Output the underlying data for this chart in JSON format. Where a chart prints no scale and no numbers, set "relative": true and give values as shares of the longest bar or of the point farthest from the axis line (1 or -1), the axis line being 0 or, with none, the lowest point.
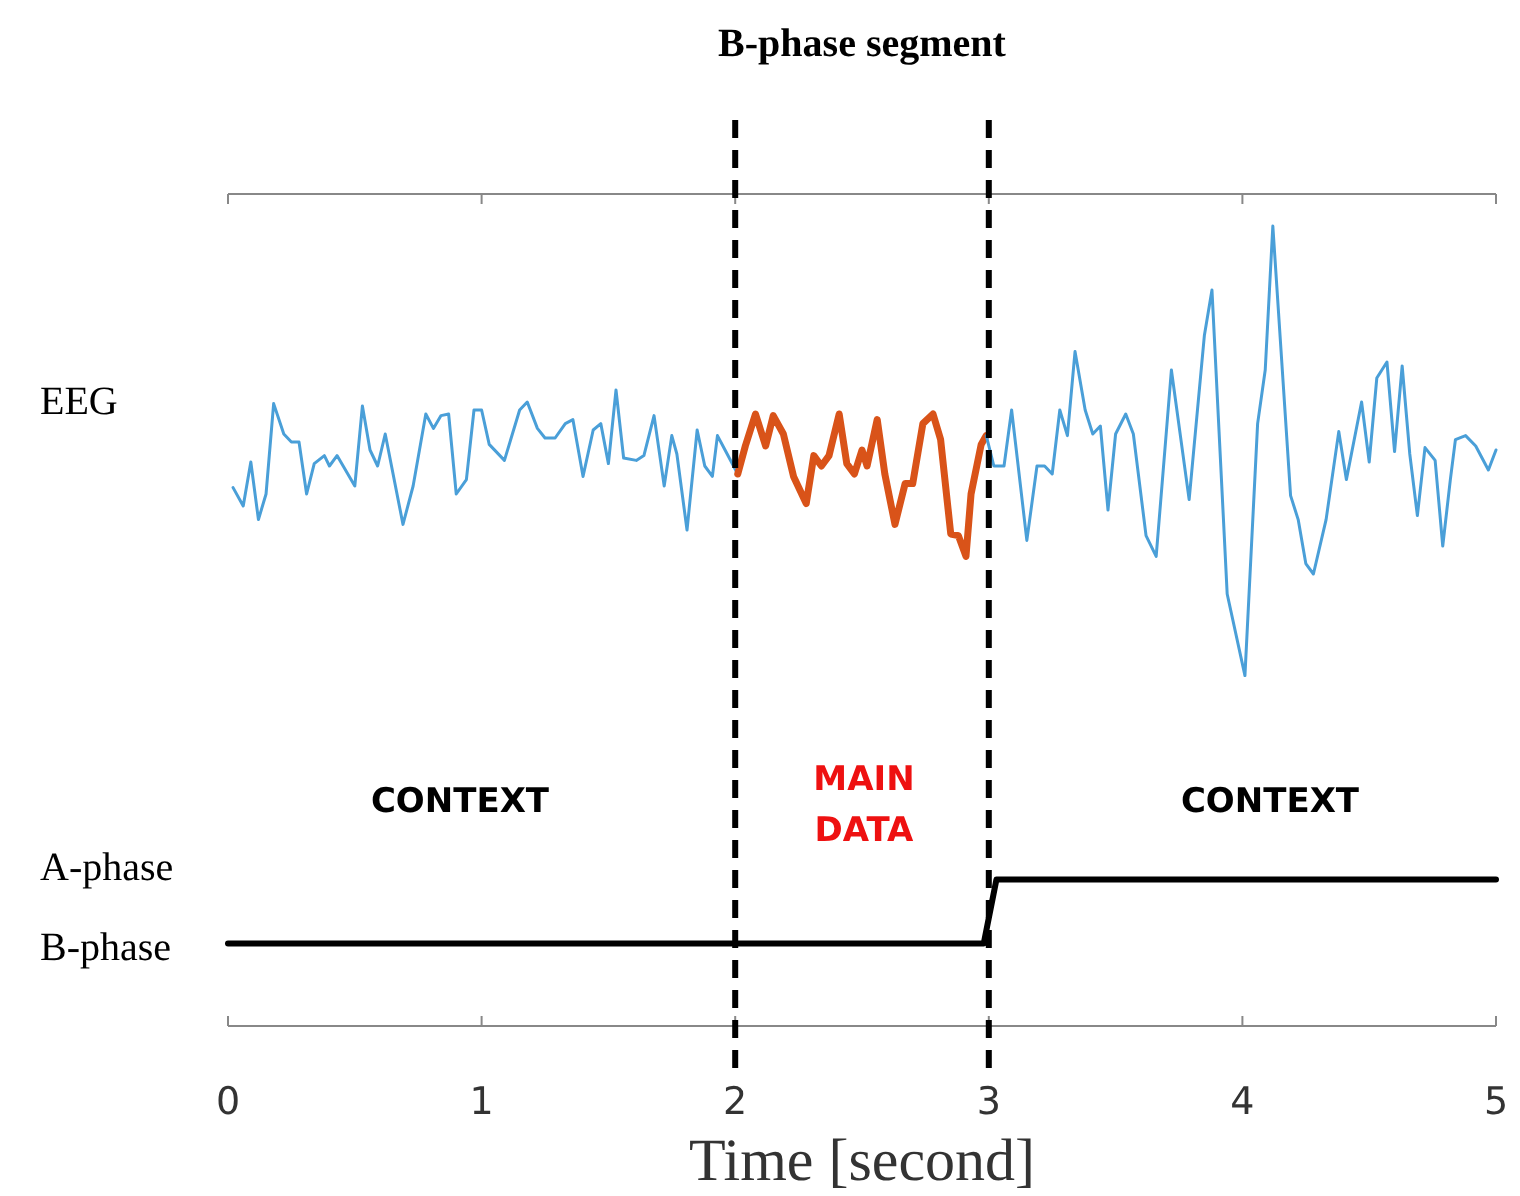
{
  "chart_data": {
    "type": "line",
    "title": "B-phase segment",
    "xlabel": "Time [second]",
    "relative": true,
    "xlim": [
      0,
      5
    ],
    "xticks": [
      0,
      1,
      2,
      3,
      4,
      5
    ],
    "line_style": "solid",
    "ref_lines": [
      {
        "axis": "x",
        "value": 2,
        "color": "#000000",
        "line_style": "dashed"
      },
      {
        "axis": "x",
        "value": 3,
        "color": "#000000",
        "line_style": "dashed"
      }
    ],
    "annotations": [
      "EEG",
      "CONTEXT",
      "MAIN DATA",
      "CONTEXT",
      "A-phase",
      "B-phase"
    ],
    "series": [
      {
        "color": "#4a9fd8",
        "x": [
          0.02,
          0.06,
          0.09,
          0.12,
          0.15,
          0.18,
          0.22,
          0.25,
          0.28,
          0.31,
          0.34,
          0.38,
          0.4,
          0.43,
          0.5,
          0.53,
          0.56,
          0.59,
          0.62,
          0.69,
          0.73,
          0.78,
          0.81,
          0.84,
          0.87,
          0.9,
          0.94,
          0.97,
          1.0,
          1.03,
          1.09,
          1.15,
          1.18,
          1.22,
          1.25,
          1.29,
          1.33,
          1.36,
          1.4,
          1.44,
          1.47,
          1.5,
          1.53,
          1.56,
          1.61,
          1.64,
          1.68,
          1.72,
          1.75,
          1.77,
          1.81,
          1.85,
          1.88,
          1.91,
          1.93,
          1.96,
          2.01
        ],
        "values": [
          0.673,
          0.65,
          0.705,
          0.633,
          0.665,
          0.778,
          0.74,
          0.73,
          0.73,
          0.665,
          0.703,
          0.713,
          0.7,
          0.713,
          0.675,
          0.775,
          0.72,
          0.7,
          0.74,
          0.627,
          0.675,
          0.765,
          0.747,
          0.763,
          0.765,
          0.665,
          0.683,
          0.77,
          0.77,
          0.727,
          0.707,
          0.77,
          0.78,
          0.747,
          0.735,
          0.735,
          0.753,
          0.758,
          0.687,
          0.745,
          0.753,
          0.703,
          0.795,
          0.71,
          0.707,
          0.713,
          0.763,
          0.675,
          0.738,
          0.715,
          0.62,
          0.745,
          0.7,
          0.687,
          0.738,
          0.72,
          0.69
        ]
      },
      {
        "color": "#d95319",
        "x": [
          2.01,
          2.04,
          2.08,
          2.12,
          2.15,
          2.19,
          2.23,
          2.28,
          2.31,
          2.34,
          2.37,
          2.41,
          2.44,
          2.47,
          2.5,
          2.52,
          2.56,
          2.59,
          2.63,
          2.67,
          2.7,
          2.74,
          2.78,
          2.81,
          2.85,
          2.88,
          2.91,
          2.93,
          2.97,
          2.99
        ],
        "values": [
          0.69,
          0.725,
          0.765,
          0.725,
          0.763,
          0.74,
          0.687,
          0.653,
          0.713,
          0.7,
          0.713,
          0.765,
          0.703,
          0.69,
          0.72,
          0.7,
          0.758,
          0.69,
          0.627,
          0.678,
          0.678,
          0.753,
          0.765,
          0.733,
          0.615,
          0.613,
          0.587,
          0.665,
          0.727,
          0.738
        ]
      },
      {
        "color": "#4a9fd8",
        "x": [
          2.99,
          3.02,
          3.06,
          3.09,
          3.15,
          3.19,
          3.22,
          3.25,
          3.28,
          3.31,
          3.34,
          3.38,
          3.41,
          3.44,
          3.47,
          3.5,
          3.54,
          3.57,
          3.62,
          3.66,
          3.72,
          3.79,
          3.85,
          3.88,
          3.94,
          4.01,
          4.06,
          4.09,
          4.12,
          4.19,
          4.22,
          4.25,
          4.28,
          4.33,
          4.38,
          4.41,
          4.47,
          4.5,
          4.53,
          4.57,
          4.6,
          4.63,
          4.66,
          4.69,
          4.72,
          4.76,
          4.79,
          4.82,
          4.84,
          4.88,
          4.92,
          4.97,
          5.0
        ],
        "values": [
          0.738,
          0.7,
          0.7,
          0.77,
          0.607,
          0.7,
          0.7,
          0.69,
          0.77,
          0.738,
          0.843,
          0.77,
          0.74,
          0.75,
          0.645,
          0.74,
          0.765,
          0.74,
          0.613,
          0.587,
          0.82,
          0.658,
          0.863,
          0.92,
          0.54,
          0.438,
          0.753,
          0.82,
          1,
          0.663,
          0.633,
          0.578,
          0.565,
          0.633,
          0.743,
          0.683,
          0.78,
          0.705,
          0.81,
          0.83,
          0.718,
          0.825,
          0.715,
          0.638,
          0.723,
          0.707,
          0.6,
          0.683,
          0.733,
          0.738,
          0.725,
          0.695,
          0.72
        ]
      },
      {
        "color": "#000000",
        "x": [
          0,
          2.98,
          3.03,
          5
        ],
        "values": [
          0.103,
          0.103,
          0.183,
          0.183
        ]
      }
    ]
  }
}
